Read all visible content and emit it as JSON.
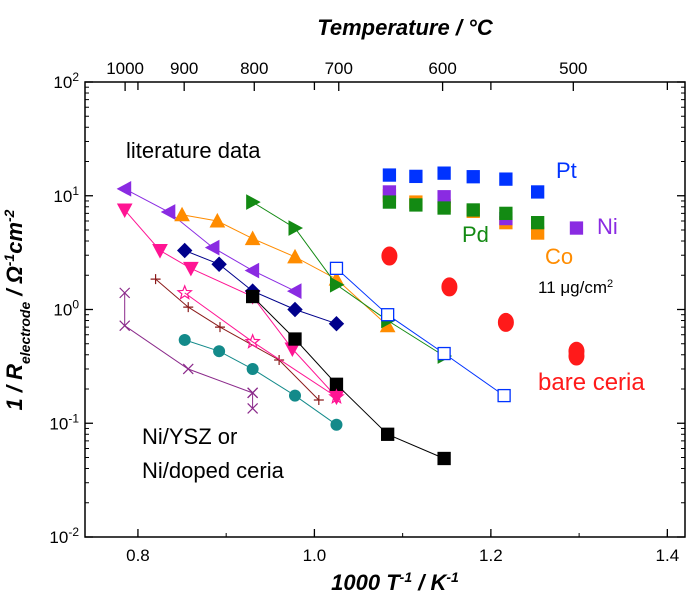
{
  "chart_data": {
    "type": "scatter",
    "xlabel": "1000 T",
    "xlabel_sup": "-1",
    "xlabel_unit": " / K",
    "xlabel_unit_sup": "-1",
    "ylabel_prefix": "1  /  R",
    "ylabel_sub": "electrode",
    "ylabel_unit": "  /  Ω",
    "ylabel_unit_sup1": "-1",
    "ylabel_cm": "cm",
    "ylabel_unit_sup2": "-2",
    "top_label": "Temperature / ",
    "top_label_unit": "°C",
    "x_range": [
      0.74,
      1.42
    ],
    "y_range": [
      0.01,
      100
    ],
    "y_scale": "log",
    "x_ticks": [
      "0.8",
      "1.0",
      "1.2",
      "1.4"
    ],
    "x_tick_values": [
      0.8,
      1.0,
      1.2,
      1.4
    ],
    "y_ticks": [
      {
        "base": "10",
        "exp": "-2",
        "value": 0.01
      },
      {
        "base": "10",
        "exp": "-1",
        "value": 0.1
      },
      {
        "base": "10",
        "exp": "0",
        "value": 1
      },
      {
        "base": "10",
        "exp": "1",
        "value": 10
      },
      {
        "base": "10",
        "exp": "2",
        "value": 100
      }
    ],
    "top_ticks": [
      {
        "label": "1000",
        "value": 1000
      },
      {
        "label": "900",
        "value": 900
      },
      {
        "label": "800",
        "value": 800
      },
      {
        "label": "700",
        "value": 700
      },
      {
        "label": "600",
        "value": 600
      },
      {
        "label": "500",
        "value": 500
      }
    ],
    "annotations": {
      "literature": "literature data",
      "ni_ysz_line1": "Ni/YSZ or",
      "ni_ysz_line2": "Ni/doped ceria",
      "pt": "Pt",
      "pd": "Pd",
      "ni": "Ni",
      "co": "Co",
      "loading": "11 μg/cm",
      "loading_sup": "2",
      "bare": "bare ceria"
    },
    "colors": {
      "pt": "#0033ff",
      "pd": "#138a13",
      "ni": "#8a2be2",
      "co": "#ff8c00",
      "bare": "#ff1a1a"
    },
    "series": [
      {
        "marker": "tri-left",
        "filled": true,
        "color": "#8a2be2",
        "line": true,
        "x": [
          0.785,
          0.835,
          0.885,
          0.93,
          0.978
        ],
        "y": [
          11.5,
          7.2,
          3.5,
          2.2,
          1.45
        ]
      },
      {
        "marker": "tri-down",
        "filled": true,
        "color": "#ff1493",
        "line": true,
        "x": [
          0.785,
          0.825,
          0.86,
          0.93,
          0.975,
          1.025
        ],
        "y": [
          7.5,
          3.3,
          2.3,
          1.3,
          0.45,
          0.17
        ]
      },
      {
        "marker": "tri-up",
        "filled": true,
        "color": "#ff8c00",
        "line": true,
        "x": [
          0.85,
          0.89,
          0.93,
          0.978,
          1.025,
          1.083
        ],
        "y": [
          6.8,
          6.0,
          4.2,
          2.9,
          1.85,
          0.72
        ]
      },
      {
        "marker": "tri-right",
        "filled": true,
        "color": "#138a13",
        "line": true,
        "x": [
          0.93,
          0.978,
          1.025,
          1.083,
          1.147
        ],
        "y": [
          8.8,
          5.2,
          1.65,
          0.8,
          0.39
        ]
      },
      {
        "marker": "diamond",
        "filled": true,
        "color": "#00008b",
        "line": true,
        "x": [
          0.853,
          0.892,
          0.93,
          0.978,
          1.025
        ],
        "y": [
          3.3,
          2.5,
          1.45,
          1.0,
          0.75
        ]
      },
      {
        "marker": "square",
        "filled": true,
        "color": "#000000",
        "line": true,
        "x": [
          0.93,
          0.978,
          1.025,
          1.083,
          1.147
        ],
        "y": [
          1.3,
          0.55,
          0.22,
          0.08,
          0.049
        ]
      },
      {
        "marker": "square",
        "filled": false,
        "color": "#0033ff",
        "line": true,
        "x": [
          1.025,
          1.083,
          1.147,
          1.215
        ],
        "y": [
          2.3,
          0.9,
          0.41,
          0.175
        ]
      },
      {
        "marker": "plus",
        "filled": false,
        "color": "#8b1a1a",
        "line": true,
        "x": [
          0.82,
          0.857,
          0.893,
          0.96,
          1.005
        ],
        "y": [
          1.85,
          1.05,
          0.7,
          0.36,
          0.16
        ]
      },
      {
        "marker": "star",
        "filled": false,
        "color": "#ff1493",
        "line": true,
        "x": [
          0.853,
          0.93,
          1.025
        ],
        "y": [
          1.4,
          0.52,
          0.17
        ]
      },
      {
        "marker": "circle",
        "filled": true,
        "color": "#138a8a",
        "line": true,
        "x": [
          0.853,
          0.892,
          0.93,
          0.978,
          1.025
        ],
        "y": [
          0.54,
          0.43,
          0.3,
          0.175,
          0.097
        ]
      },
      {
        "marker": "x",
        "filled": false,
        "color": "#8b2a8b",
        "line": true,
        "x": [
          0.785,
          0.785,
          0.857,
          0.93
        ],
        "y": [
          1.4,
          0.72,
          0.3,
          0.185
        ]
      },
      {
        "marker": "x",
        "filled": false,
        "color": "#8b2a8b",
        "line": true,
        "x": [
          0.93,
          0.93
        ],
        "y": [
          0.185,
          0.135
        ]
      },
      {
        "name": "Co",
        "marker": "square",
        "filled": true,
        "color": "#ff8c00",
        "line": false,
        "x": [
          1.085,
          1.115,
          1.147,
          1.18,
          1.217,
          1.253
        ],
        "y": [
          10.0,
          8.8,
          8.2,
          7.3,
          5.8,
          4.7
        ]
      },
      {
        "name": "Ni",
        "marker": "square",
        "filled": true,
        "color": "#8a2be2",
        "line": false,
        "x": [
          1.085,
          1.147,
          1.217,
          1.297
        ],
        "y": [
          10.8,
          9.8,
          6.3,
          5.2
        ]
      },
      {
        "name": "Pd",
        "marker": "square",
        "filled": true,
        "color": "#138a13",
        "line": false,
        "x": [
          1.085,
          1.115,
          1.147,
          1.18,
          1.217,
          1.253
        ],
        "y": [
          8.8,
          8.3,
          7.8,
          7.5,
          7.0,
          5.8
        ]
      },
      {
        "name": "Pt",
        "marker": "square",
        "filled": true,
        "color": "#0033ff",
        "line": false,
        "x": [
          1.085,
          1.115,
          1.147,
          1.18,
          1.217,
          1.253
        ],
        "y": [
          15.2,
          14.8,
          15.8,
          14.7,
          14.0,
          10.8
        ]
      },
      {
        "name": "bare ceria",
        "marker": "circle-large",
        "filled": true,
        "color": "#ff1a1a",
        "line": false,
        "x": [
          1.085,
          1.153,
          1.217,
          1.297,
          1.297
        ],
        "y": [
          2.95,
          1.58,
          0.77,
          0.43,
          0.39
        ]
      }
    ]
  }
}
